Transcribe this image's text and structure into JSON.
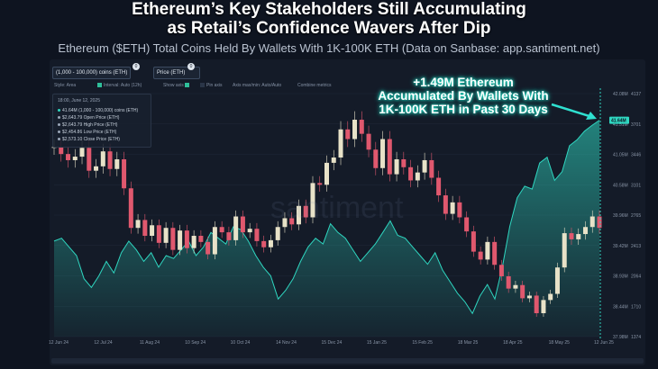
{
  "title": {
    "line1": "Ethereum’s Key Stakeholders Still Accumulating",
    "line2": "as Retail’s Confidence Wavers After Dip"
  },
  "subtitle": "Ethereum ($ETH) Total Coins Held By Wallets With 1K-100K ETH (Data on Sanbase: app.santiment.net)",
  "tabs": [
    {
      "label": "(1,000 - 100,000) coins (ETH)",
      "badge": "0"
    },
    {
      "label": "Price (ETH)",
      "badge": "0"
    }
  ],
  "toolbar": {
    "style": "Style: Area",
    "interval": "Interval: Auto (12h)",
    "show_axis": "Show axis",
    "pin_axis": "Pin axis",
    "axis_max_min": "Axis max/min: Auto/Auto",
    "combine": "Combine metrics"
  },
  "tooltip": {
    "date": "18:00, June 12, 2025",
    "rows": [
      {
        "text": "41.64M (1,000 - 100,000) coins (ETH)",
        "color": "#2fd6c0"
      },
      {
        "text": "$2,643.79 Open Price (ETH)",
        "color": "#9aa6b8"
      },
      {
        "text": "$2,643.79 High Price (ETH)",
        "color": "#9aa6b8"
      },
      {
        "text": "$2,454.86 Low Price (ETH)",
        "color": "#9aa6b8"
      },
      {
        "text": "$2,573.10 Close Price (ETH)",
        "color": "#9aa6b8"
      }
    ]
  },
  "annotation": {
    "line1": "+1.49M Ethereum",
    "line2": "Accumulated By Wallets With",
    "line3": "1K-100K ETH in Past 30 Days"
  },
  "watermark": "santiment",
  "chart_data": {
    "type": "line",
    "title": "Ethereum’s Key Stakeholders Still Accumulating as Retail’s Confidence Wavers After Dip",
    "x_ticks": [
      "12 Jun 24",
      "12 Jul 24",
      "11 Aug 24",
      "10 Sep 24",
      "10 Oct 24",
      "14 Nov 24",
      "15 Dec 24",
      "15 Jan 25",
      "15 Feb 25",
      "18 Mar 25",
      "18 Apr 25",
      "18 May 25",
      "12 Jun 25"
    ],
    "left_axis_ticks": [
      "42.08M",
      "41.51M",
      "41.05M",
      "40.58M",
      "39.96M",
      "39.42M",
      "38.93M",
      "38.44M",
      "37.98M"
    ],
    "right_axis_ticks": [
      "4137",
      "3701",
      "3446",
      "3101",
      "2765",
      "2413",
      "2064",
      "1710",
      "1374"
    ],
    "left_axis_highlight": "41.64M",
    "series": [
      {
        "name": "(1,000 - 100,000) coins (ETH)",
        "kind": "area",
        "color": "#2fd6c0",
        "ylim": [
          37.9,
          42.1
        ],
        "values": [
          39.55,
          39.6,
          39.45,
          39.3,
          38.9,
          38.75,
          38.95,
          39.2,
          39.0,
          39.35,
          39.55,
          39.4,
          39.2,
          39.35,
          39.1,
          39.3,
          39.25,
          39.4,
          39.55,
          39.3,
          39.45,
          39.7,
          39.6,
          39.5,
          39.8,
          39.75,
          39.55,
          39.3,
          39.1,
          38.95,
          38.55,
          38.7,
          38.9,
          39.2,
          39.45,
          39.6,
          39.5,
          39.85,
          39.7,
          39.6,
          39.4,
          39.2,
          39.35,
          39.5,
          39.7,
          39.9,
          39.65,
          39.6,
          39.45,
          39.3,
          39.15,
          39.35,
          39.05,
          38.85,
          38.65,
          38.5,
          38.3,
          38.6,
          38.8,
          38.55,
          39.1,
          39.8,
          40.3,
          40.5,
          40.45,
          40.9,
          41.0,
          40.6,
          40.75,
          41.2,
          41.3,
          41.45,
          41.55,
          41.64
        ]
      },
      {
        "name": "Price (ETH)",
        "kind": "candlestick",
        "ylim": [
          1374,
          4137
        ],
        "values": [
          3530,
          3450,
          3380,
          3420,
          3520,
          3260,
          3310,
          3480,
          3280,
          3390,
          3060,
          2610,
          2700,
          2520,
          2640,
          2440,
          2610,
          2360,
          2580,
          2380,
          2520,
          2450,
          2310,
          2620,
          2560,
          2470,
          2740,
          2560,
          2600,
          2460,
          2390,
          2470,
          2620,
          2720,
          2650,
          2860,
          2730,
          3120,
          3100,
          3350,
          3410,
          3730,
          3620,
          3840,
          3680,
          3500,
          3290,
          3620,
          3220,
          3390,
          3300,
          3150,
          3240,
          3380,
          3180,
          2980,
          2770,
          2900,
          2730,
          2570,
          2340,
          2250,
          2450,
          2190,
          2060,
          1920,
          1960,
          1810,
          1840,
          1640,
          1790,
          1860,
          2160,
          2550,
          2480,
          2540,
          2620,
          2740,
          2610
        ]
      }
    ],
    "legend": "top-left"
  }
}
